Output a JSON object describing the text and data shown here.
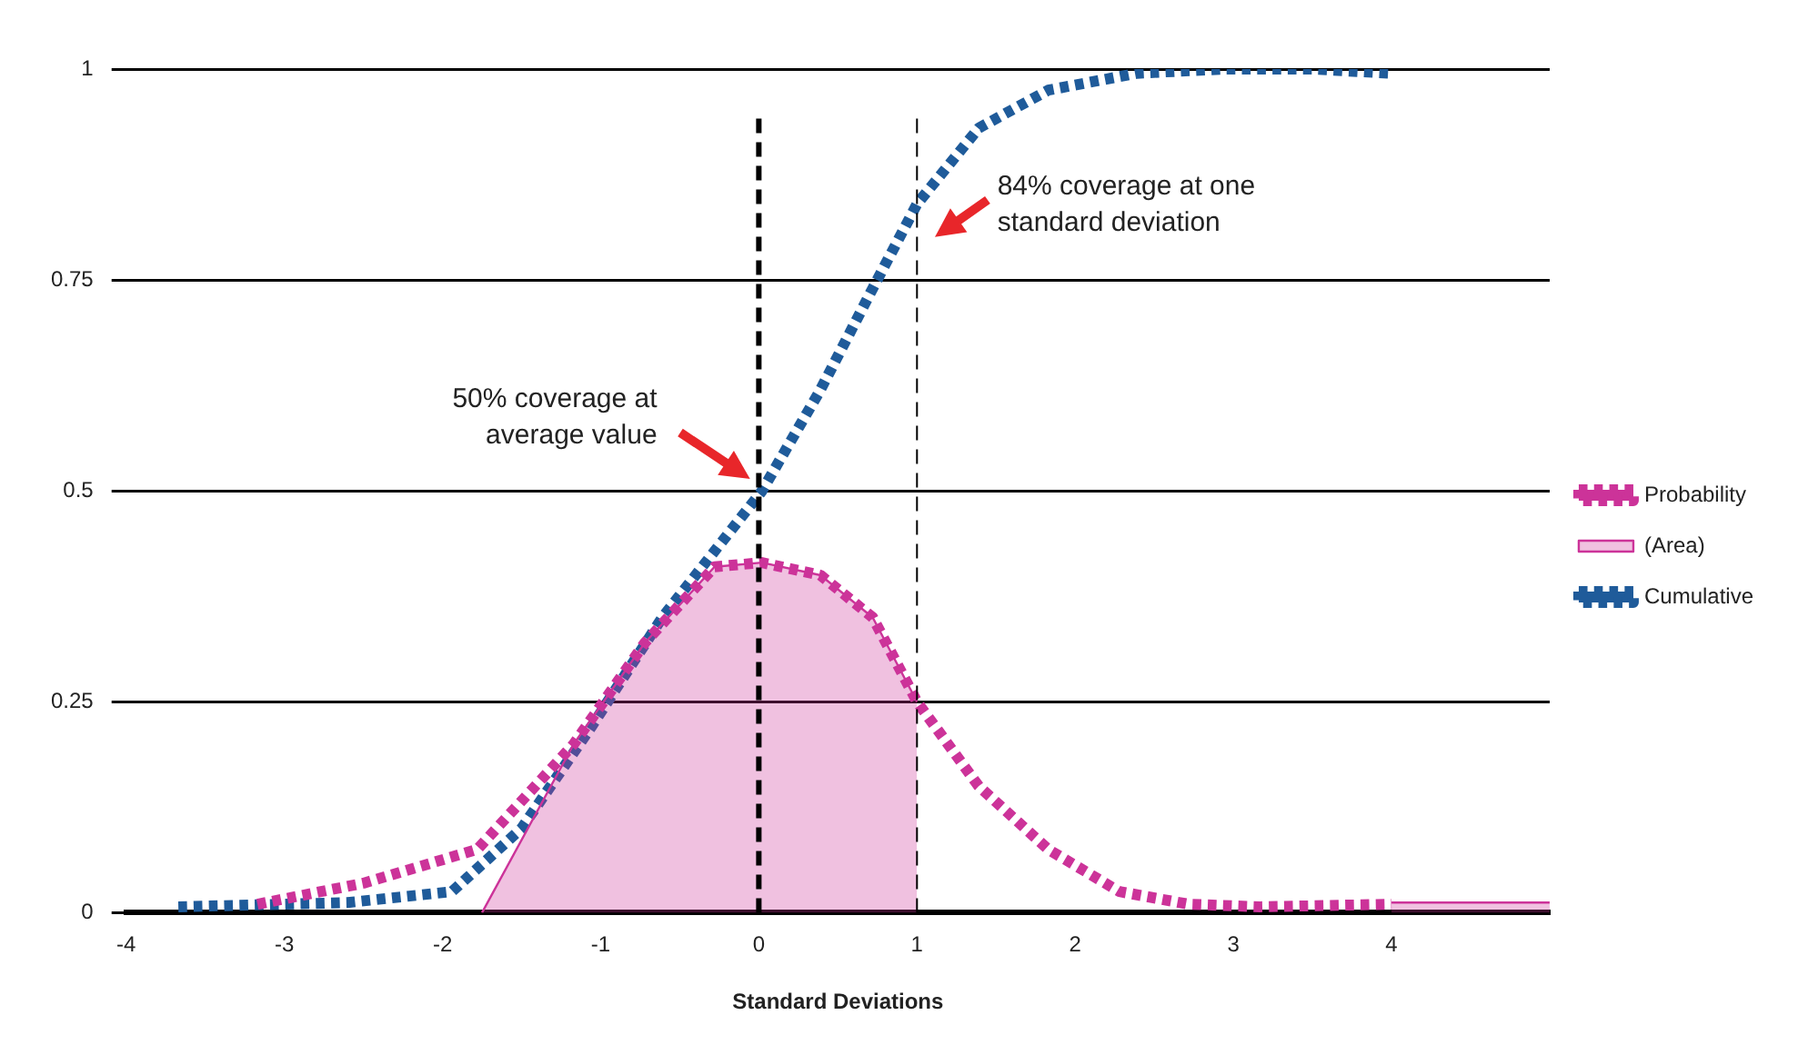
{
  "chart_data": {
    "type": "line",
    "xlabel": "Standard Deviations",
    "xlim": [
      -4,
      5
    ],
    "xticks": [
      -4,
      -3,
      -2,
      -1,
      0,
      1,
      2,
      3,
      4
    ],
    "ylim": [
      0,
      1
    ],
    "yticks": [
      0,
      0.25,
      0.5,
      0.75,
      1
    ],
    "grid": "y",
    "legend": "right",
    "marker": "none",
    "series": [
      {
        "name": "Probability",
        "type": "line",
        "line_style": "dotted",
        "color": "#cc3399",
        "x": [
          -3.17,
          -2.5,
          -1.78,
          -1.17,
          -0.72,
          -0.28,
          0.02,
          0.39,
          0.72,
          1,
          1.39,
          1.83,
          2.28,
          2.72,
          3.17,
          4
        ],
        "values": [
          0.01,
          0.035,
          0.075,
          0.2,
          0.32,
          0.41,
          0.415,
          0.4,
          0.35,
          0.25,
          0.15,
          0.075,
          0.025,
          0.01,
          0.007,
          0.01
        ]
      },
      {
        "name": "(Area)",
        "type": "area",
        "line_style": "solid",
        "color": "#cc3399",
        "x": [
          -1.75,
          -1.17,
          -0.72,
          -0.28,
          0.02,
          0.39,
          0.72,
          1,
          null,
          4,
          5
        ],
        "values": [
          0.0,
          0.2,
          0.32,
          0.41,
          0.415,
          0.4,
          0.35,
          0.25,
          null,
          0.012,
          0.012
        ]
      },
      {
        "name": "Cumulative",
        "type": "line",
        "line_style": "dotted",
        "color": "#1f5b9a",
        "x": [
          -3.67,
          -2.6,
          -1.94,
          -1.5,
          -1.06,
          -0.61,
          0.02,
          0.39,
          0.72,
          1,
          1.39,
          1.83,
          2.39,
          2.94,
          3.5,
          4
        ],
        "values": [
          0.007,
          0.012,
          0.025,
          0.1,
          0.22,
          0.35,
          0.5,
          0.62,
          0.74,
          0.84,
          0.93,
          0.975,
          0.995,
          1,
          1,
          0.995
        ]
      }
    ],
    "ref_lines": [
      {
        "axis": "x",
        "value": 0,
        "color": "#000000",
        "line_style": "dashed"
      },
      {
        "axis": "x",
        "value": 1,
        "color": "#000000",
        "line_style": "dashed"
      }
    ],
    "annotations": [
      "50% coverage at\naverage value",
      "84% coverage at one\nstandard deviation"
    ]
  }
}
